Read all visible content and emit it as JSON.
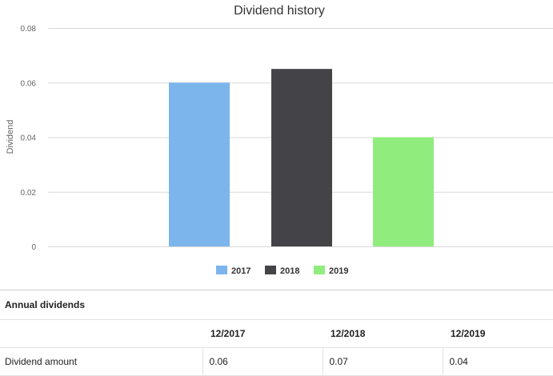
{
  "chart_data": {
    "type": "bar",
    "title": "Dividend history",
    "xlabel": "",
    "ylabel": "Dividend",
    "ylim": [
      0,
      0.08
    ],
    "yticks": [
      "0",
      "0.02",
      "0.04",
      "0.06",
      "0.08"
    ],
    "grid": true,
    "legend_position": "bottom",
    "series": [
      {
        "name": "2017",
        "value": 0.06,
        "color": "#7cb5ec"
      },
      {
        "name": "2018",
        "value": 0.065,
        "color": "#434348"
      },
      {
        "name": "2019",
        "value": 0.04,
        "color": "#90ed7d"
      }
    ]
  },
  "table": {
    "heading": "Annual dividends",
    "columns": [
      "12/2017",
      "12/2018",
      "12/2019"
    ],
    "row_label": "Dividend amount",
    "values": [
      "0.06",
      "0.07",
      "0.04"
    ]
  }
}
